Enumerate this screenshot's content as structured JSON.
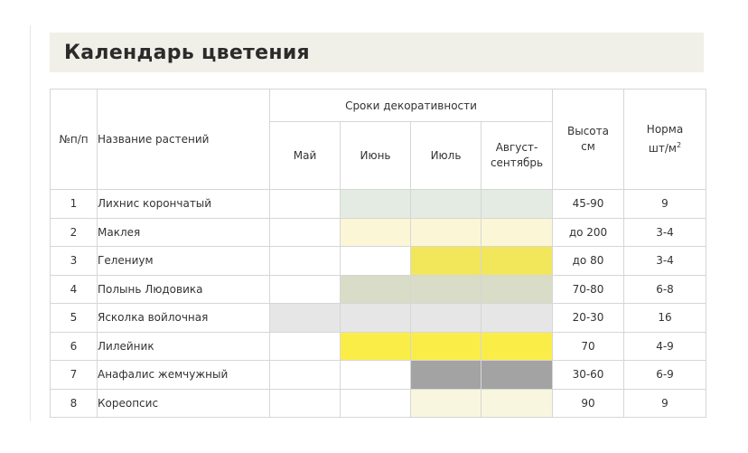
{
  "page": {
    "title": "Календарь цветения"
  },
  "table": {
    "headers": {
      "num": "№п/п",
      "name": "Название растений",
      "period_group": "Сроки декоративности",
      "months": [
        "Май",
        "Июнь",
        "Июль",
        "Август-\nсентябрь"
      ],
      "height": "Высота\nсм",
      "norm_text": "Норма\nшт/м",
      "norm_sup": "2"
    },
    "rows": [
      {
        "num": "1",
        "name": "Лихнис корончатый",
        "fills": [
          "",
          "#e3ebe2",
          "#e3ebe2",
          "#e3ebe2"
        ],
        "height": "45-90",
        "norm": "9"
      },
      {
        "num": "2",
        "name": "Маклея",
        "fills": [
          "",
          "#fbf6d6",
          "#fbf6d6",
          "#fbf6d6"
        ],
        "height": "до 200",
        "norm": "3-4"
      },
      {
        "num": "3",
        "name": "Гелениум",
        "fills": [
          "",
          "",
          "#f2e65a",
          "#f2e65a"
        ],
        "height": "до 80",
        "norm": "3-4"
      },
      {
        "num": "4",
        "name": "Полынь Людовика",
        "fills": [
          "",
          "#d9dcc6",
          "#d9dcc6",
          "#d9dcc6"
        ],
        "height": "70-80",
        "norm": "6-8"
      },
      {
        "num": "5",
        "name": "Ясколка войлочная",
        "fills": [
          "#e6e6e6",
          "#e6e6e6",
          "#e6e6e6",
          "#e6e6e6"
        ],
        "height": "20-30",
        "norm": "16"
      },
      {
        "num": "6",
        "name": "Лилейник",
        "fills": [
          "",
          "#fbed48",
          "#fbed48",
          "#fbed48"
        ],
        "height": "70",
        "norm": "4-9"
      },
      {
        "num": "7",
        "name": "Анафалис жемчужный",
        "fills": [
          "",
          "",
          "#a3a3a3",
          "#a3a3a3"
        ],
        "height": "30-60",
        "norm": "6-9"
      },
      {
        "num": "8",
        "name": "Кореопсис",
        "fills": [
          "",
          "",
          "#f8f6df",
          "#f8f6df"
        ],
        "height": "90",
        "norm": "9"
      }
    ]
  }
}
